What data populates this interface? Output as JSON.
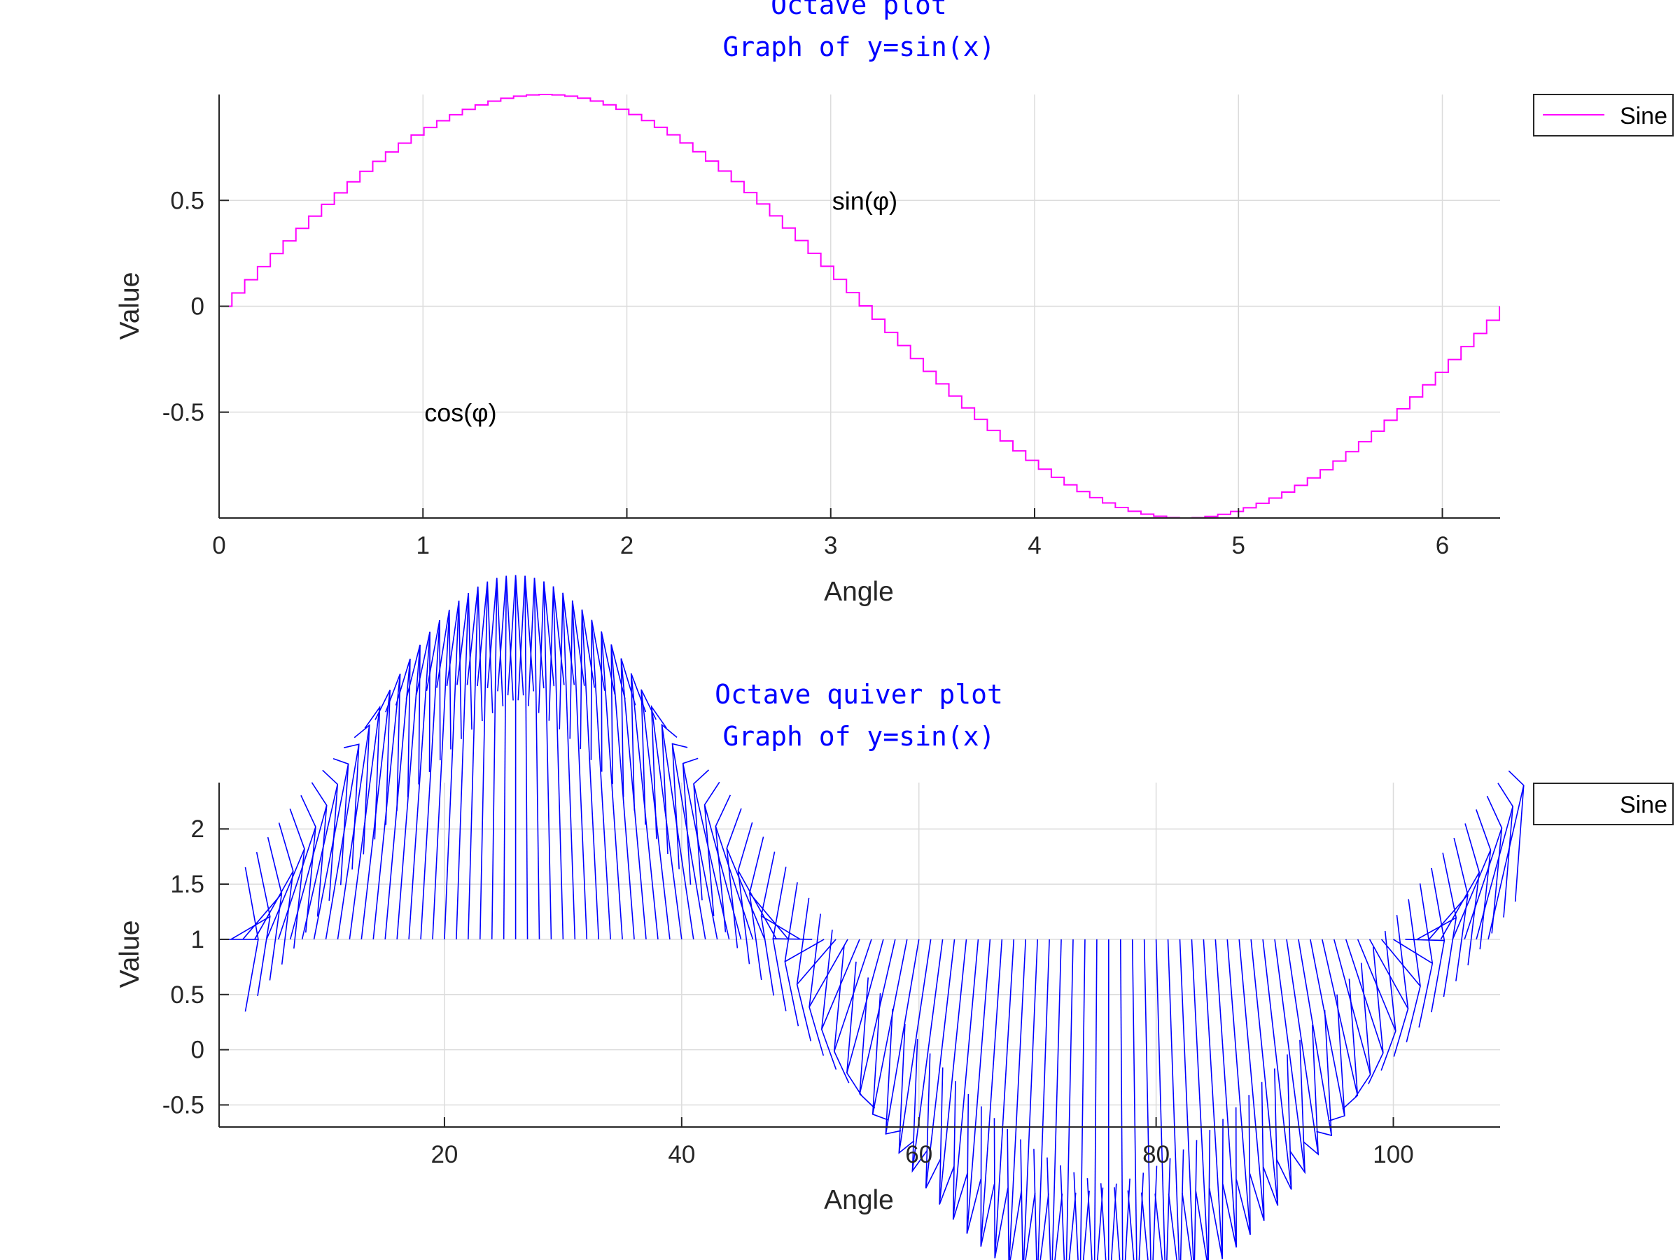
{
  "chart_data": [
    {
      "type": "line",
      "style": "stairs",
      "title": "Octave plot",
      "subtitle": "Graph of y=sin(x)",
      "xlabel": "Angle",
      "ylabel": "Value",
      "xlim": [
        0,
        6.2832
      ],
      "ylim": [
        -1,
        1
      ],
      "xticks": [
        "0",
        "1",
        "2",
        "3",
        "4",
        "5",
        "6"
      ],
      "yticks": [
        "-0.5",
        "0",
        "0.5"
      ],
      "grid": true,
      "legend": {
        "entries": [
          "Sine"
        ],
        "position": "outside-top-right"
      },
      "series": [
        {
          "name": "Sine",
          "color": "#ff00ff",
          "function": "sin(x)",
          "x_start": 0,
          "x_end": 6.2832,
          "step": 0.0628
        }
      ],
      "annotations": [
        {
          "text": "sin(φ)",
          "x": 3,
          "y": 0.5
        },
        {
          "text": "cos(φ)",
          "x": 1,
          "y": -0.5
        }
      ]
    },
    {
      "type": "quiver",
      "title": "Octave quiver plot",
      "subtitle": "Graph of y=sin(x)",
      "xlabel": "Angle",
      "ylabel": "Value",
      "xlim": [
        1,
        109
      ],
      "ylim": [
        -0.7,
        2.42
      ],
      "xticks": [
        "20",
        "40",
        "60",
        "80",
        "100"
      ],
      "yticks": [
        "-0.5",
        "0",
        "0.5",
        "1",
        "1.5",
        "2"
      ],
      "grid": true,
      "legend": {
        "entries": [
          "Sine"
        ],
        "position": "outside-top-right"
      },
      "series": [
        {
          "name": "Sine",
          "color": "#0000ff",
          "base_y": 1,
          "count": 108,
          "u": "cos((i-1)*0.0628)",
          "v": "sin((i-1)*0.0628)",
          "scale": 3.3
        }
      ]
    }
  ]
}
